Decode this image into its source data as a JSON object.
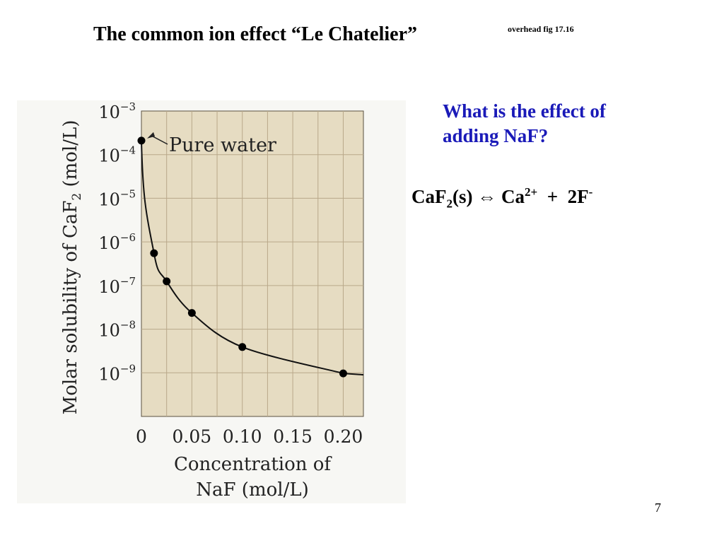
{
  "slide": {
    "title": "The common ion effect “Le Chatelier”",
    "note": "overhead fig 17.16",
    "question_line1": "What is the effect of",
    "question_line2": "adding NaF?",
    "equation": {
      "reactant": "CaF",
      "reactant_sub": "2",
      "reactant_state": "(s)",
      "arrow": "⇔",
      "product1": "Ca",
      "product1_sup": "2+",
      "plus": "+",
      "product2": "2F",
      "product2_sup": "-"
    },
    "page_number": "7"
  },
  "chart_data": {
    "type": "scatter",
    "xlabel_line1": "Concentration of",
    "xlabel_line2": "NaF (mol/L)",
    "ylabel": "Molar solubility of CaF",
    "ylabel_sub": "2",
    "ylabel_unit": " (mol/L)",
    "x_ticks": [
      "0",
      "0.05",
      "0.10",
      "0.15",
      "0.20"
    ],
    "x_tick_values": [
      0,
      0.05,
      0.1,
      0.15,
      0.2
    ],
    "y_ticks": [
      {
        "base": "10",
        "exp": "−3",
        "value": -3
      },
      {
        "base": "10",
        "exp": "−4",
        "value": -4
      },
      {
        "base": "10",
        "exp": "−5",
        "value": -5
      },
      {
        "base": "10",
        "exp": "−6",
        "value": -6
      },
      {
        "base": "10",
        "exp": "−7",
        "value": -7
      },
      {
        "base": "10",
        "exp": "−8",
        "value": -8
      },
      {
        "base": "10",
        "exp": "−9",
        "value": -9
      }
    ],
    "y_scale": "log",
    "xlim": [
      0,
      0.22
    ],
    "ylim": [
      1e-10,
      0.001
    ],
    "annotation": "Pure water",
    "grid": true,
    "points": [
      {
        "x": 0,
        "y": 0.00021
      },
      {
        "x": 0.0125,
        "y": 5.5e-07
      },
      {
        "x": 0.025,
        "y": 1.25e-07
      },
      {
        "x": 0.05,
        "y": 2.35e-08
      },
      {
        "x": 0.1,
        "y": 3.9e-09
      },
      {
        "x": 0.2,
        "y": 9.7e-10
      }
    ],
    "colors": {
      "plot_bg": "#e6dcc2",
      "grid": "#b9a88a",
      "marker": "#000000"
    }
  }
}
